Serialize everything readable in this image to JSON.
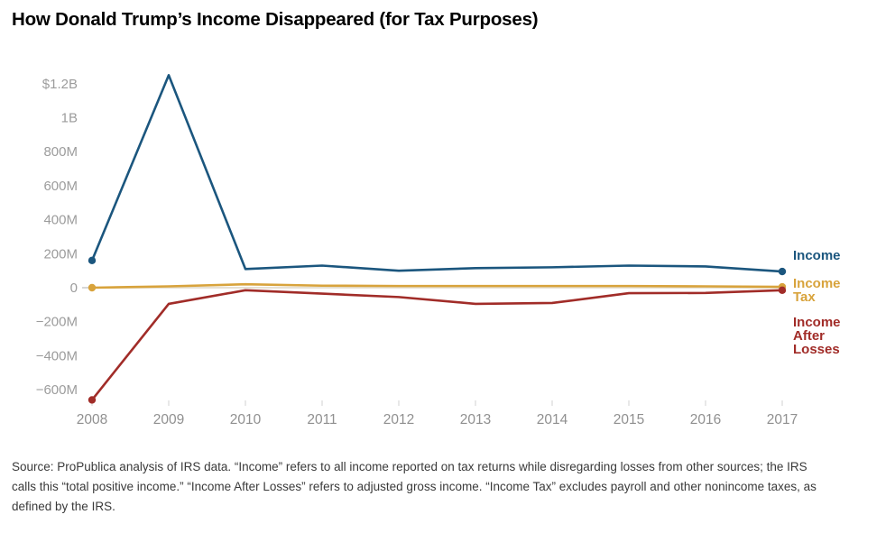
{
  "source_note": "Source: ProPublica analysis of IRS data. “Income” refers to all income reported on tax returns while disregarding losses from other sources; the IRS calls this “total positive income.” “Income After Losses” refers to adjusted gross income. “Income Tax” excludes payroll and other nonincome taxes, as defined by the IRS.",
  "colors": {
    "income_blue": "#1b567e",
    "income_tax_gold": "#d8a33c",
    "income_after_losses_red": "#a12c28",
    "axis_text": "#9c9c9c",
    "x_tick": "#d8d8d8",
    "zero_tick": "#c9c9c9",
    "zero_line": "#e6e0d2",
    "title_text": "#000000",
    "source_text": "#3a3a3a"
  },
  "chart_data": {
    "type": "line",
    "title": "How Donald Trump’s Income Disappeared (for Tax Purposes)",
    "unit": "millions of USD",
    "x_labels": [
      "2008",
      "2009",
      "2010",
      "2011",
      "2012",
      "2013",
      "2014",
      "2015",
      "2016",
      "2017"
    ],
    "series": [
      {
        "name": "Income",
        "color": "#1b567e",
        "values": [
          160,
          1250,
          110,
          130,
          100,
          115,
          120,
          130,
          125,
          95
        ]
      },
      {
        "name": "Income Tax",
        "color": "#d8a33c",
        "values": [
          0,
          8,
          20,
          12,
          10,
          10,
          10,
          10,
          8,
          5
        ]
      },
      {
        "name": "Income After Losses",
        "color": "#a12c28",
        "values": [
          -660,
          -95,
          -15,
          -35,
          -55,
          -95,
          -90,
          -32,
          -31,
          -15
        ]
      }
    ],
    "y_ticks": [
      {
        "value": 1200,
        "label": "$1.2B"
      },
      {
        "value": 1000,
        "label": "1B"
      },
      {
        "value": 800,
        "label": "800M"
      },
      {
        "value": 600,
        "label": "600M"
      },
      {
        "value": 400,
        "label": "400M"
      },
      {
        "value": 200,
        "label": "200M"
      },
      {
        "value": 0,
        "label": "0"
      },
      {
        "value": -200,
        "label": "−200M"
      },
      {
        "value": -400,
        "label": "−400M"
      },
      {
        "value": -600,
        "label": "−600M"
      }
    ],
    "ylim": [
      -700,
      1300
    ],
    "grid": false,
    "legend_position": "right",
    "legend_labels": [
      "Income",
      "Income Tax",
      "Income After Losses"
    ]
  }
}
